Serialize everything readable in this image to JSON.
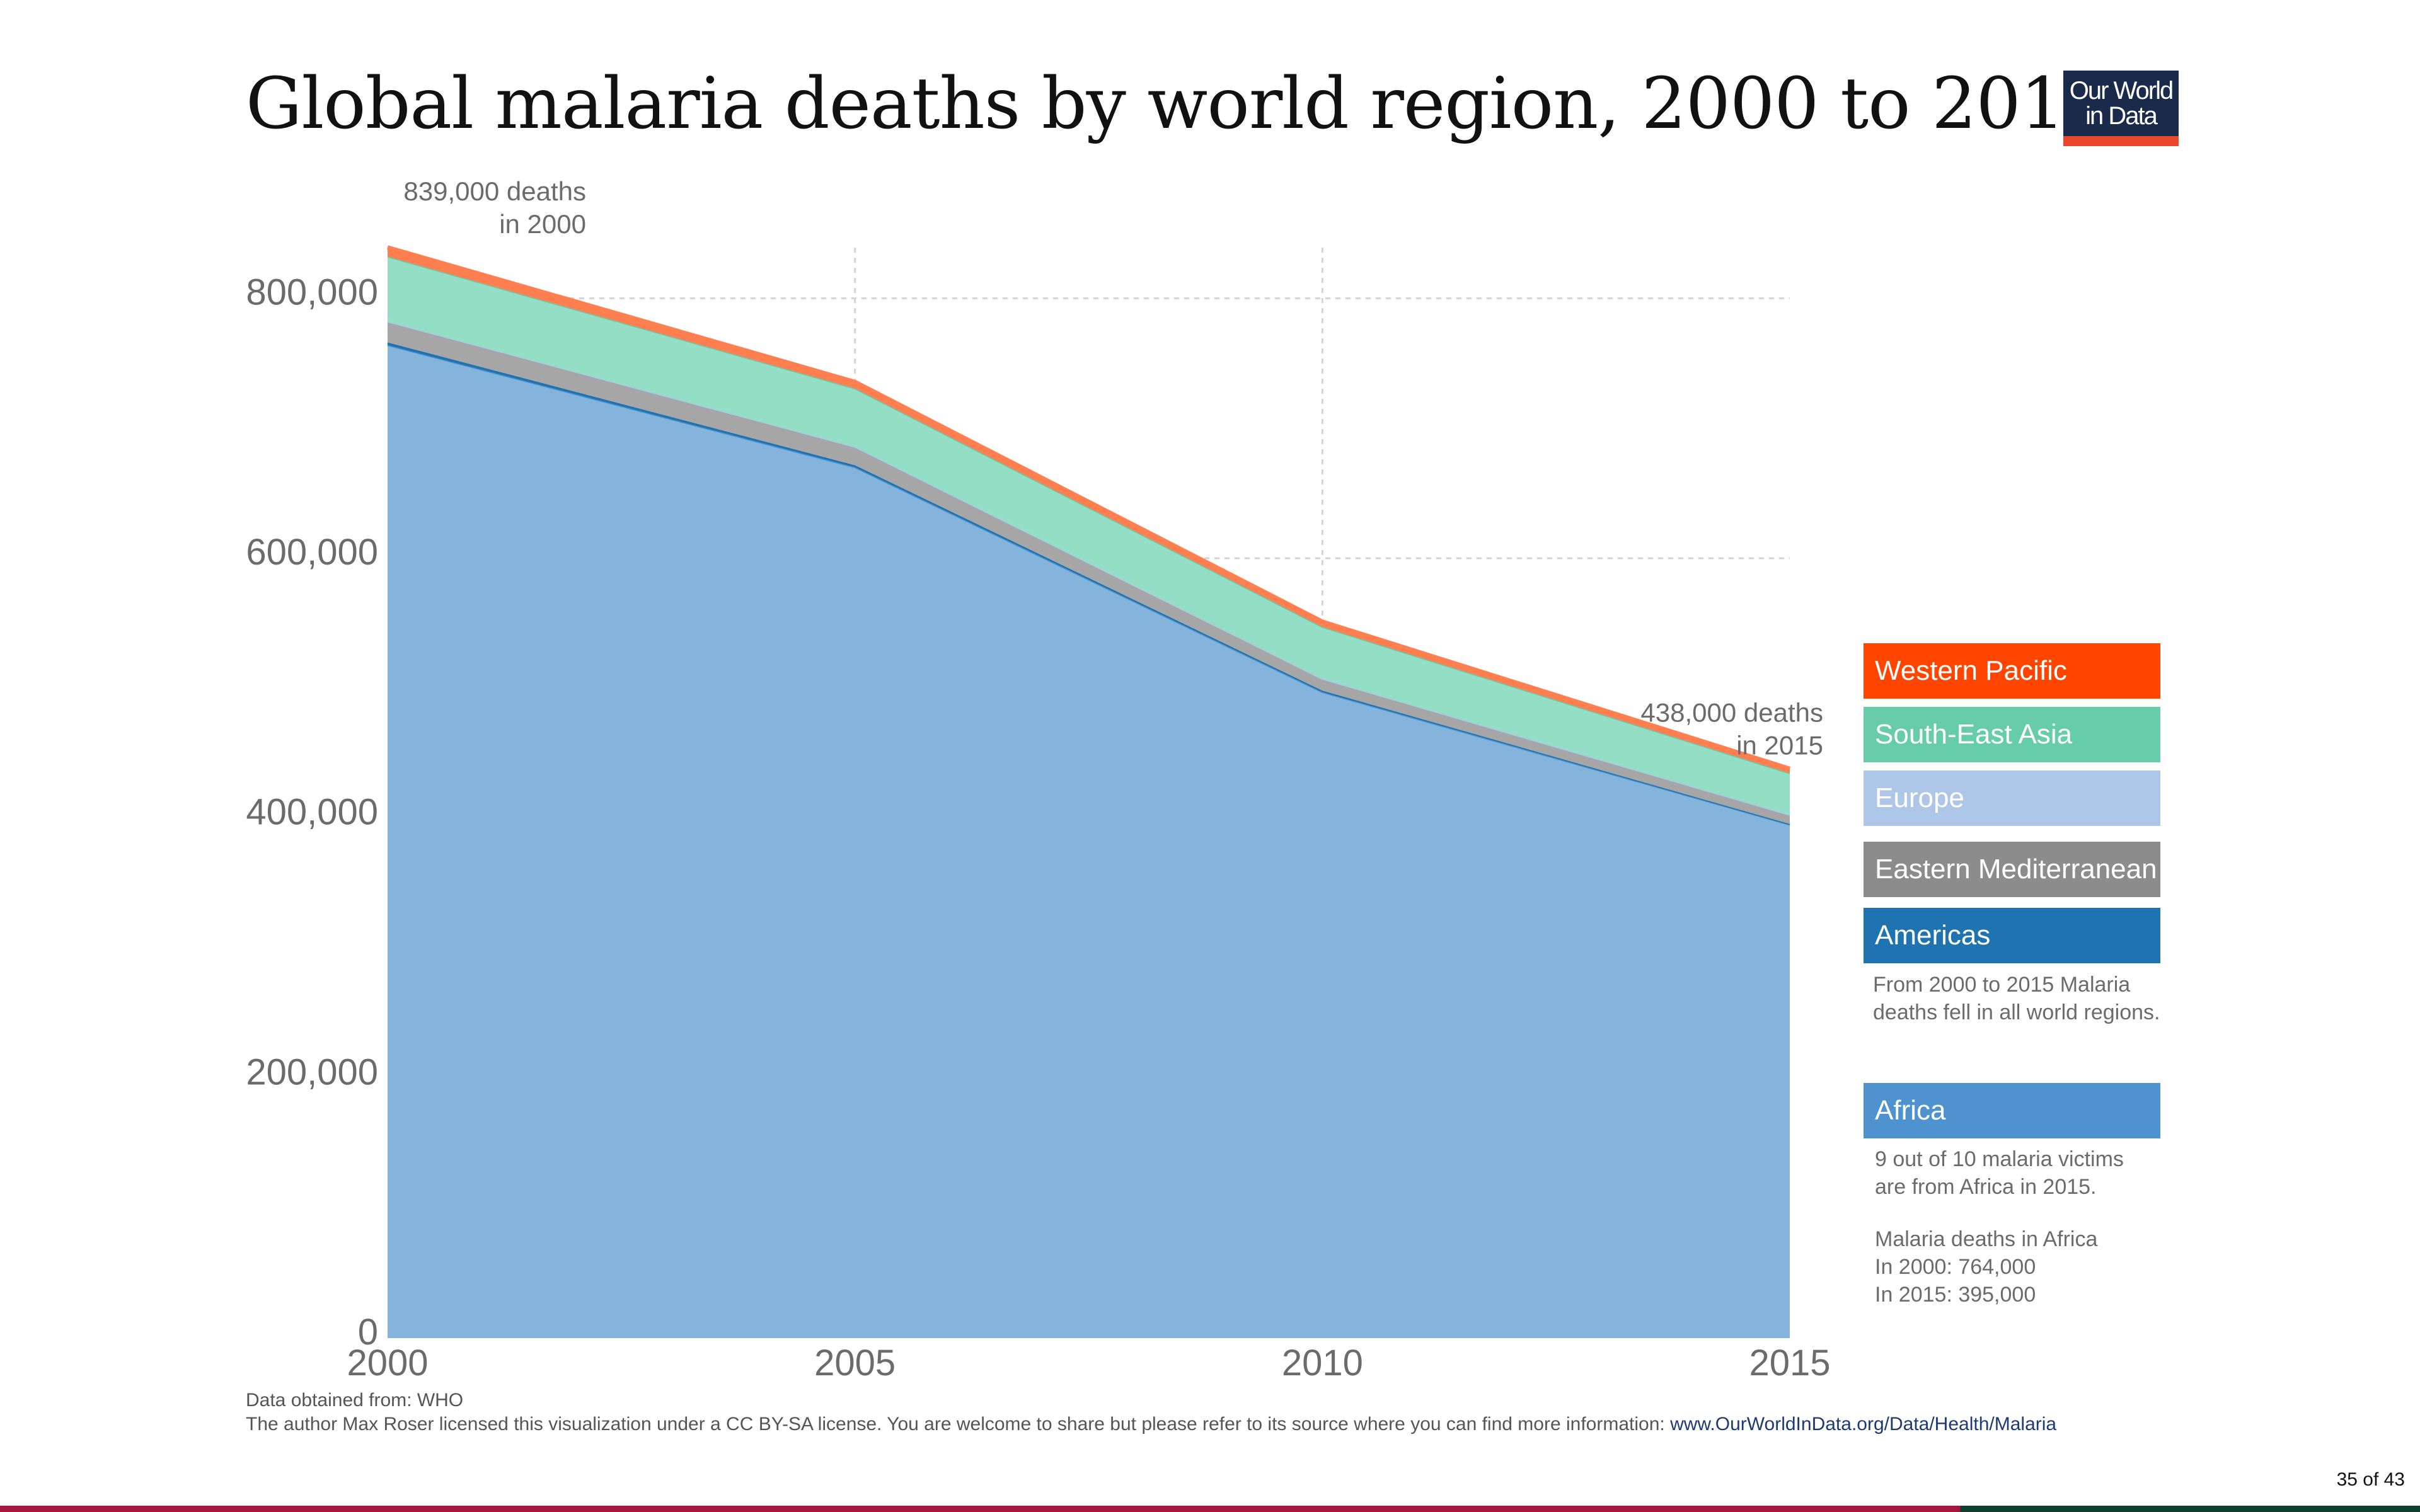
{
  "title": "Global malaria deaths by world region, 2000 to 2015",
  "logo": {
    "line1": "Our World",
    "line2": "in Data"
  },
  "chart_data": {
    "type": "area",
    "stacked": true,
    "x": [
      2000,
      2005,
      2010,
      2015
    ],
    "xlim": [
      2000,
      2015
    ],
    "ylim": [
      0,
      839000
    ],
    "x_ticks": [
      "2000",
      "2005",
      "2010",
      "2015"
    ],
    "y_ticks": [
      {
        "value": 0,
        "label": "0"
      },
      {
        "value": 200000,
        "label": "200,000"
      },
      {
        "value": 400000,
        "label": "400,000"
      },
      {
        "value": 600000,
        "label": "600,000"
      },
      {
        "value": 800000,
        "label": "800,000"
      }
    ],
    "grid": true,
    "legend_position": "right",
    "series": [
      {
        "name": "Africa",
        "values": [
          764000,
          670000,
          497000,
          395000
        ],
        "color": "#4e93d0",
        "fill": "#84b3db"
      },
      {
        "name": "Americas",
        "values": [
          2000,
          1500,
          1100,
          500
        ],
        "color": "#1f73b1",
        "fill": "#1f73b1"
      },
      {
        "name": "Eastern Mediterranean",
        "values": [
          16000,
          14000,
          9000,
          7000
        ],
        "color": "#8c8c8c",
        "fill": "#a6a6a6"
      },
      {
        "name": "Europe",
        "values": [
          100,
          100,
          50,
          10
        ],
        "color": "#a9c4e8",
        "fill": "#a9c4e8"
      },
      {
        "name": "South-East Asia",
        "values": [
          50000,
          45000,
          40000,
          32000
        ],
        "color": "#66ccaa",
        "fill": "#95dec6"
      },
      {
        "name": "Western Pacific",
        "values": [
          7000,
          5000,
          4000,
          3500
        ],
        "color": "#ff7f50",
        "fill": "#ff7f50"
      }
    ],
    "annotations": [
      {
        "x": 2000,
        "y": 839000,
        "line1": "839,000 deaths",
        "line2": "in 2000"
      },
      {
        "x": 2015,
        "y": 438000,
        "line1": "438,000 deaths",
        "line2": "in 2015"
      }
    ]
  },
  "legend": [
    {
      "name": "Western Pacific",
      "color": "#ff4500"
    },
    {
      "name": "South-East Asia",
      "color": "#66ccaa"
    },
    {
      "name": "Europe",
      "color": "#aec6e8"
    },
    {
      "name": "Eastern Mediterranean",
      "color": "#8c8c8c"
    },
    {
      "name": "Americas",
      "color": "#1f73b1"
    },
    {
      "name": "Africa",
      "color": "#4e93d0"
    }
  ],
  "notes": {
    "regions": "From 2000 to 2015 Malaria\ndeaths fell in all world regions.",
    "africa_share": "9 out of 10 malaria victims\nare from Africa in 2015.",
    "africa_deaths": "Malaria deaths in Africa\n  In 2000: 764,000\n  In 2015: 395,000"
  },
  "footer": {
    "source": "Data obtained from: WHO",
    "license": "The author Max Roser licensed this visualization under a CC BY-SA license. You are welcome to share but please refer to its source where you can find more information: ",
    "link": "www.OurWorldInData.org/Data/Health/Malaria"
  },
  "page_number": "35 of 43"
}
